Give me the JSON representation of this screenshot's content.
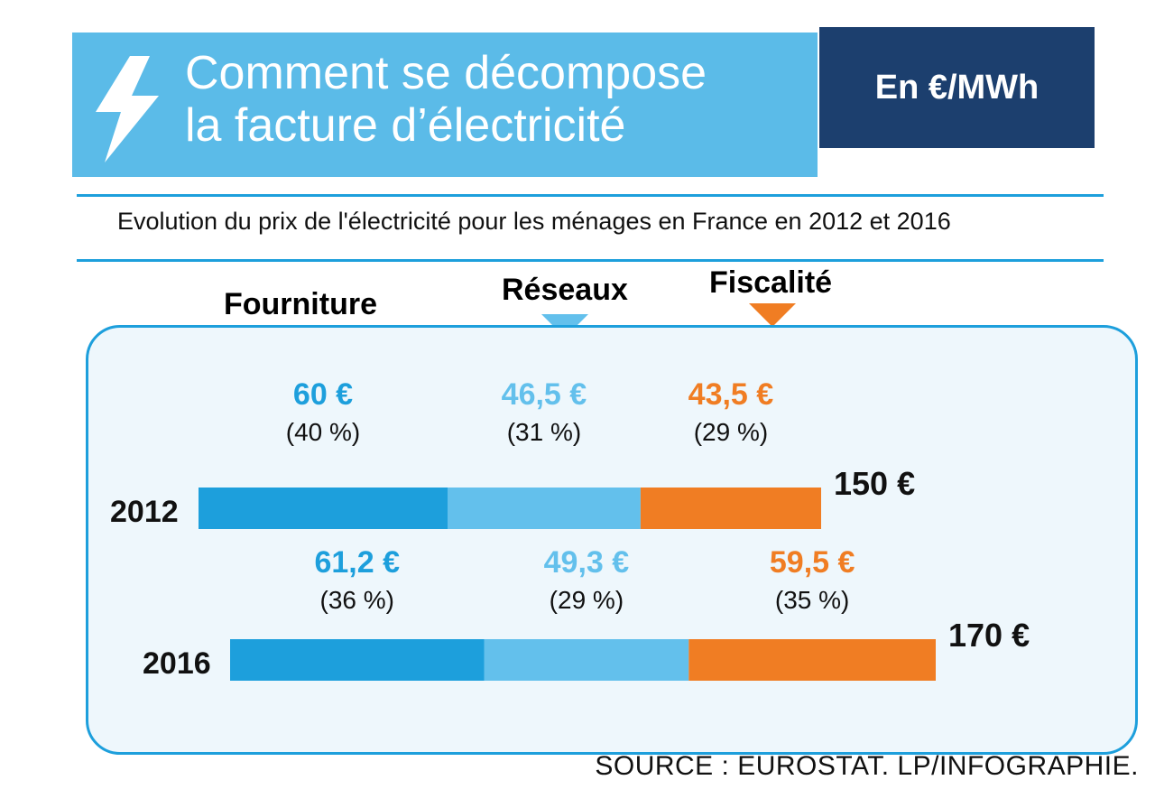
{
  "header": {
    "title": "Comment se décompose\nla facture d’électricité",
    "unit": "En €/MWh",
    "subtitle": "Evolution du prix de l'électricité pour les ménages en France en 2012 et 2016"
  },
  "legend": [
    {
      "label": "Fourniture",
      "color": "#1d9fdc"
    },
    {
      "label": "Réseaux",
      "color": "#63c0ec"
    },
    {
      "label": "Fiscalité",
      "color": "#f07d23"
    }
  ],
  "source": "SOURCE : EUROSTAT.  LP/INFOGRAPHIE.",
  "chart_data": {
    "type": "bar",
    "orientation": "horizontal",
    "stacked": true,
    "categories": [
      "2012",
      "2016"
    ],
    "series": [
      {
        "name": "Fourniture",
        "color": "#1d9fdc",
        "values": [
          60,
          61.2
        ],
        "value_labels": [
          "60 €",
          "61,2 €"
        ],
        "pct_labels": [
          "(40 %)",
          "(36 %)"
        ]
      },
      {
        "name": "Réseaux",
        "color": "#63c0ec",
        "values": [
          46.5,
          49.3
        ],
        "value_labels": [
          "46,5 €",
          "49,3 €"
        ],
        "pct_labels": [
          "(31 %)",
          "(29 %)"
        ]
      },
      {
        "name": "Fiscalité",
        "color": "#f07d23",
        "values": [
          43.5,
          59.5
        ],
        "value_labels": [
          "43,5 €",
          "59,5 €"
        ],
        "pct_labels": [
          "(29 %)",
          "(35 %)"
        ]
      }
    ],
    "totals": [
      150,
      170
    ],
    "total_labels": [
      "150 €",
      "170 €"
    ],
    "unit": "€/MWh"
  }
}
